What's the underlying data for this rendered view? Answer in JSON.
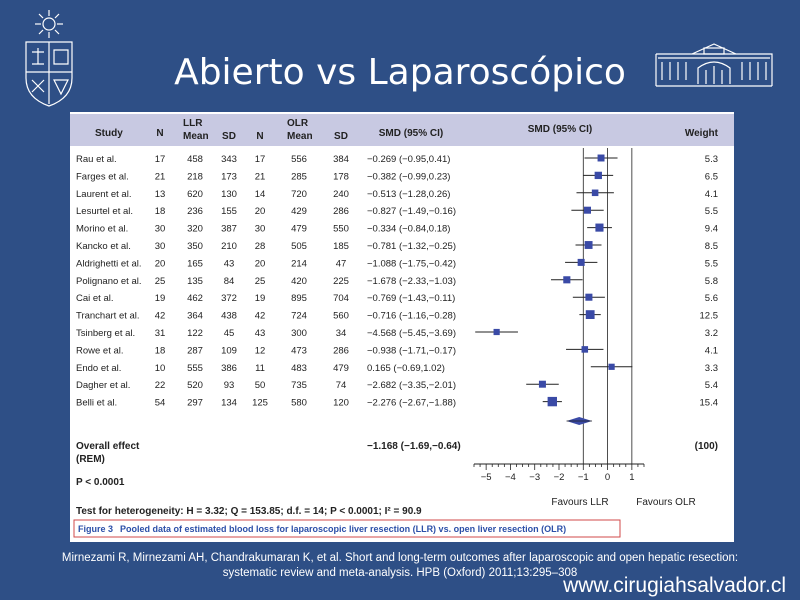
{
  "slide": {
    "title": "Abierto vs Laparoscópico",
    "citation_line1": "Mirnezami R, Mirnezami AH, Chandrakumaran K, et al. Short and long-term outcomes after laparoscopic and open hepatic resection:",
    "citation_line2": "systematic review and meta-analysis. HPB (Oxford) 2011;13:295–308",
    "website": "www.cirugiahsalvador.cl"
  },
  "colors": {
    "background": "#2e4f86",
    "marker": "#3a4aa6",
    "header_band": "#c8c9e2",
    "caption_border": "#d04a4a"
  },
  "table": {
    "headers": {
      "study": "Study",
      "n1": "N",
      "llr": "LLR",
      "mean1": "Mean",
      "sd1": "SD",
      "n2": "N",
      "olr": "OLR",
      "mean2": "Mean",
      "sd2": "SD",
      "smd": "SMD (95% CI)",
      "plot": "SMD (95% CI)",
      "weight": "Weight"
    },
    "rows": [
      {
        "study": "Rau et al.",
        "n1": "17",
        "mean1": "458",
        "sd1": "343",
        "n2": "17",
        "mean2": "556",
        "sd2": "384",
        "smd": "−0.269 (−0.95,0.41)",
        "weight": "5.3"
      },
      {
        "study": "Farges et al.",
        "n1": "21",
        "mean1": "218",
        "sd1": "173",
        "n2": "21",
        "mean2": "285",
        "sd2": "178",
        "smd": "−0.382 (−0.99,0.23)",
        "weight": "6.5"
      },
      {
        "study": "Laurent et al.",
        "n1": "13",
        "mean1": "620",
        "sd1": "130",
        "n2": "14",
        "mean2": "720",
        "sd2": "240",
        "smd": "−0.513 (−1.28,0.26)",
        "weight": "4.1"
      },
      {
        "study": "Lesurtel et al.",
        "n1": "18",
        "mean1": "236",
        "sd1": "155",
        "n2": "20",
        "mean2": "429",
        "sd2": "286",
        "smd": "−0.827 (−1.49,−0.16)",
        "weight": "5.5"
      },
      {
        "study": "Morino et al.",
        "n1": "30",
        "mean1": "320",
        "sd1": "387",
        "n2": "30",
        "mean2": "479",
        "sd2": "550",
        "smd": "−0.334 (−0.84,0.18)",
        "weight": "9.4"
      },
      {
        "study": "Kancko et al.",
        "n1": "30",
        "mean1": "350",
        "sd1": "210",
        "n2": "28",
        "mean2": "505",
        "sd2": "185",
        "smd": "−0.781 (−1.32,−0.25)",
        "weight": "8.5"
      },
      {
        "study": "Aldrighetti et al.",
        "n1": "20",
        "mean1": "165",
        "sd1": "43",
        "n2": "20",
        "mean2": "214",
        "sd2": "47",
        "smd": "−1.088 (−1.75,−0.42)",
        "weight": "5.5"
      },
      {
        "study": "Polignano et al.",
        "n1": "25",
        "mean1": "135",
        "sd1": "84",
        "n2": "25",
        "mean2": "420",
        "sd2": "225",
        "smd": "−1.678 (−2.33,−1.03)",
        "weight": "5.8"
      },
      {
        "study": "Cai et al.",
        "n1": "19",
        "mean1": "462",
        "sd1": "372",
        "n2": "19",
        "mean2": "895",
        "sd2": "704",
        "smd": "−0.769 (−1.43,−0.11)",
        "weight": "5.6"
      },
      {
        "study": "Tranchart et al.",
        "n1": "42",
        "mean1": "364",
        "sd1": "438",
        "n2": "42",
        "mean2": "724",
        "sd2": "560",
        "smd": "−0.716 (−1.16,−0.28)",
        "weight": "12.5"
      },
      {
        "study": "Tsinberg et al.",
        "n1": "31",
        "mean1": "122",
        "sd1": "45",
        "n2": "43",
        "mean2": "300",
        "sd2": "34",
        "smd": "−4.568 (−5.45,−3.69)",
        "weight": "3.2"
      },
      {
        "study": "Rowe et al.",
        "n1": "18",
        "mean1": "287",
        "sd1": "109",
        "n2": "12",
        "mean2": "473",
        "sd2": "286",
        "smd": "−0.938 (−1.71,−0.17)",
        "weight": "4.1"
      },
      {
        "study": "Endo et al.",
        "n1": "10",
        "mean1": "555",
        "sd1": "386",
        "n2": "11",
        "mean2": "483",
        "sd2": "479",
        "smd": "0.165 (−0.69,1.02)",
        "weight": "3.3"
      },
      {
        "study": "Dagher et al.",
        "n1": "22",
        "mean1": "520",
        "sd1": "93",
        "n2": "50",
        "mean2": "735",
        "sd2": "74",
        "smd": "−2.682 (−3.35,−2.01)",
        "weight": "5.4"
      },
      {
        "study": "Belli et al.",
        "n1": "54",
        "mean1": "297",
        "sd1": "134",
        "n2": "125",
        "mean2": "580",
        "sd2": "120",
        "smd": "−2.276 (−2.67,−1.88)",
        "weight": "15.4"
      }
    ],
    "overall": {
      "label1": "Overall effect",
      "label2": "(REM)",
      "smd": "−1.168 (−1.69,−0.64)",
      "weight": "(100)"
    },
    "p_value": "P < 0.0001",
    "heterogeneity": "Test for heterogeneity: H = 3.32; Q = 153.85; d.f. = 14; P < 0.0001; I² = 90.9",
    "caption_label": "Figure 3",
    "caption_text": "Pooled data of estimated blood loss for laparoscopic liver resection (LLR) vs. open liver resection (OLR)",
    "favours_left": "Favours LLR",
    "favours_right": "Favours OLR"
  },
  "chart_data": {
    "type": "forest",
    "xlabel": "",
    "xlim": [
      -5.5,
      1.5
    ],
    "xticks": [
      -5,
      -4,
      -3,
      -2,
      -1,
      0,
      1
    ],
    "xtick_labels": [
      "−5",
      "−4",
      "−3",
      "−2",
      "−1",
      "0",
      "1"
    ],
    "reference_lines": [
      -1,
      0,
      1
    ],
    "points": [
      {
        "study": "Rau et al.",
        "smd": -0.269,
        "lo": -0.95,
        "hi": 0.41,
        "weight": 5.3
      },
      {
        "study": "Farges et al.",
        "smd": -0.382,
        "lo": -0.99,
        "hi": 0.23,
        "weight": 6.5
      },
      {
        "study": "Laurent et al.",
        "smd": -0.513,
        "lo": -1.28,
        "hi": 0.26,
        "weight": 4.1
      },
      {
        "study": "Lesurtel et al.",
        "smd": -0.827,
        "lo": -1.49,
        "hi": -0.16,
        "weight": 5.5
      },
      {
        "study": "Morino et al.",
        "smd": -0.334,
        "lo": -0.84,
        "hi": 0.18,
        "weight": 9.4
      },
      {
        "study": "Kancko et al.",
        "smd": -0.781,
        "lo": -1.32,
        "hi": -0.25,
        "weight": 8.5
      },
      {
        "study": "Aldrighetti et al.",
        "smd": -1.088,
        "lo": -1.75,
        "hi": -0.42,
        "weight": 5.5
      },
      {
        "study": "Polignano et al.",
        "smd": -1.678,
        "lo": -2.33,
        "hi": -1.03,
        "weight": 5.8
      },
      {
        "study": "Cai et al.",
        "smd": -0.769,
        "lo": -1.43,
        "hi": -0.11,
        "weight": 5.6
      },
      {
        "study": "Tranchart et al.",
        "smd": -0.716,
        "lo": -1.16,
        "hi": -0.28,
        "weight": 12.5
      },
      {
        "study": "Tsinberg et al.",
        "smd": -4.568,
        "lo": -5.45,
        "hi": -3.69,
        "weight": 3.2
      },
      {
        "study": "Rowe et al.",
        "smd": -0.938,
        "lo": -1.71,
        "hi": -0.17,
        "weight": 4.1
      },
      {
        "study": "Endo et al.",
        "smd": 0.165,
        "lo": -0.69,
        "hi": 1.02,
        "weight": 3.3
      },
      {
        "study": "Dagher et al.",
        "smd": -2.682,
        "lo": -3.35,
        "hi": -2.01,
        "weight": 5.4
      },
      {
        "study": "Belli et al.",
        "smd": -2.276,
        "lo": -2.67,
        "hi": -1.88,
        "weight": 15.4
      }
    ],
    "overall": {
      "smd": -1.168,
      "lo": -1.69,
      "hi": -0.64,
      "weight": 100
    }
  }
}
